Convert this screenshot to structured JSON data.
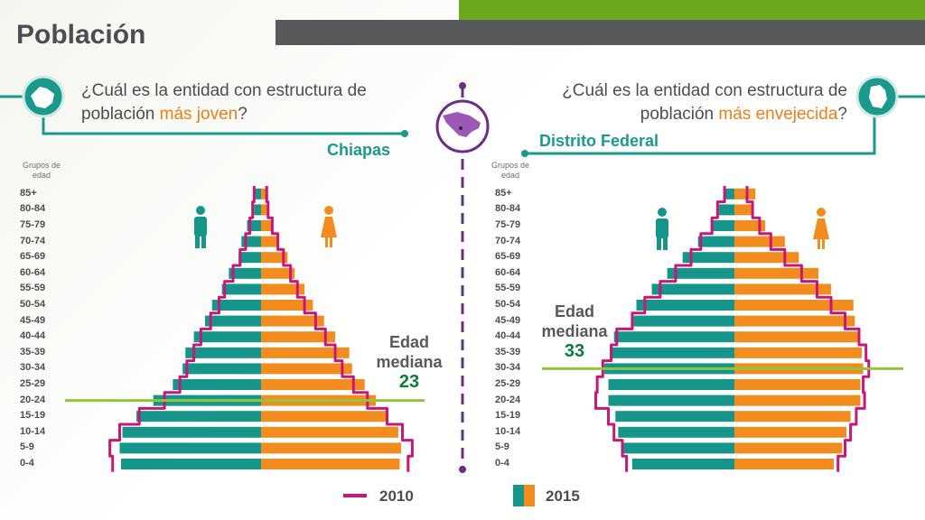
{
  "header": {
    "title": "Población"
  },
  "left": {
    "q_pre": "¿Cuál es la entidad con estructura de población ",
    "q_hl": "más joven",
    "q_post": "?",
    "entity": "Chiapas",
    "median_label_1": "Edad",
    "median_label_2": "mediana",
    "median_value": "23",
    "groups_label_1": "Grupos de",
    "groups_label_2": "edad"
  },
  "right": {
    "q_pre": "¿Cuál es la entidad con estructura de población ",
    "q_hl": "más envejecida",
    "q_post": "?",
    "entity": "Distrito Federal",
    "median_label_1": "Edad",
    "median_label_2": "mediana",
    "median_value": "33",
    "groups_label_1": "Grupos de",
    "groups_label_2": "edad"
  },
  "legend": {
    "line_label": "2010",
    "bar_label": "2015"
  },
  "colors": {
    "male": "#16958a",
    "female": "#f28c1e",
    "line2010": "#c8177a",
    "median": "#8dc63f",
    "accent": "#1a9a8d"
  },
  "icons": [
    "mexico-map-icon",
    "chiapas-state-icon",
    "df-state-icon",
    "male-icon",
    "female-icon"
  ],
  "chart_data": [
    {
      "type": "bar",
      "title": "Chiapas",
      "categories": [
        "0-4",
        "5-9",
        "10-14",
        "15-19",
        "20-24",
        "25-29",
        "30-34",
        "35-39",
        "40-44",
        "45-49",
        "50-54",
        "55-59",
        "60-64",
        "65-69",
        "70-74",
        "75-79",
        "80-84",
        "85+"
      ],
      "series": [
        {
          "name": "2015",
          "values_male": [
            10.0,
            10.1,
            9.9,
            8.9,
            7.7,
            6.3,
            5.6,
            5.4,
            4.8,
            4.0,
            3.5,
            2.8,
            2.3,
            1.6,
            1.4,
            1.0,
            0.5,
            0.5
          ],
          "values_female": [
            9.9,
            10.0,
            9.8,
            9.0,
            8.2,
            7.4,
            6.5,
            6.3,
            5.3,
            4.5,
            3.7,
            3.1,
            2.4,
            1.9,
            1.2,
            0.8,
            0.5,
            0.5
          ]
        },
        {
          "name": "2010",
          "values_male": [
            10.6,
            10.8,
            10.1,
            8.7,
            6.9,
            5.8,
            5.3,
            4.8,
            4.3,
            3.6,
            3.0,
            2.6,
            2.0,
            1.5,
            1.1,
            0.8,
            0.6,
            0.5
          ],
          "values_female": [
            10.5,
            10.8,
            10.1,
            9.0,
            7.6,
            6.6,
            5.8,
            5.3,
            4.6,
            3.9,
            3.1,
            2.6,
            2.1,
            1.6,
            1.2,
            0.8,
            0.5,
            0.4
          ]
        }
      ],
      "median_age": "23",
      "median_group": "20-24"
    },
    {
      "type": "bar",
      "title": "Distrito Federal",
      "categories": [
        "0-4",
        "5-9",
        "10-14",
        "15-19",
        "20-24",
        "25-29",
        "30-34",
        "35-39",
        "40-44",
        "45-49",
        "50-54",
        "55-59",
        "60-64",
        "65-69",
        "70-74",
        "75-79",
        "80-84",
        "85+"
      ],
      "series": [
        {
          "name": "2015",
          "values_male": [
            7.3,
            8.1,
            8.3,
            8.5,
            9.0,
            9.0,
            9.3,
            8.9,
            8.6,
            7.2,
            7.0,
            5.9,
            4.8,
            3.7,
            2.6,
            1.7,
            1.1,
            0.8
          ],
          "values_female": [
            7.1,
            7.7,
            8.0,
            8.3,
            9.0,
            9.0,
            9.2,
            9.1,
            9.0,
            8.6,
            8.5,
            6.9,
            6.0,
            4.6,
            3.6,
            2.2,
            1.3,
            1.5
          ]
        },
        {
          "name": "2010",
          "values_male": [
            7.7,
            8.0,
            8.6,
            9.0,
            9.9,
            9.8,
            9.4,
            8.8,
            8.4,
            7.3,
            6.4,
            5.3,
            4.2,
            3.1,
            2.4,
            1.6,
            1.2,
            0.7
          ],
          "values_female": [
            7.4,
            7.9,
            8.3,
            8.7,
            9.3,
            9.2,
            9.6,
            9.4,
            8.9,
            7.9,
            6.9,
            5.9,
            4.8,
            3.6,
            2.6,
            1.8,
            1.3,
            0.9
          ]
        }
      ],
      "median_age": "33",
      "median_group": "30-34"
    }
  ]
}
